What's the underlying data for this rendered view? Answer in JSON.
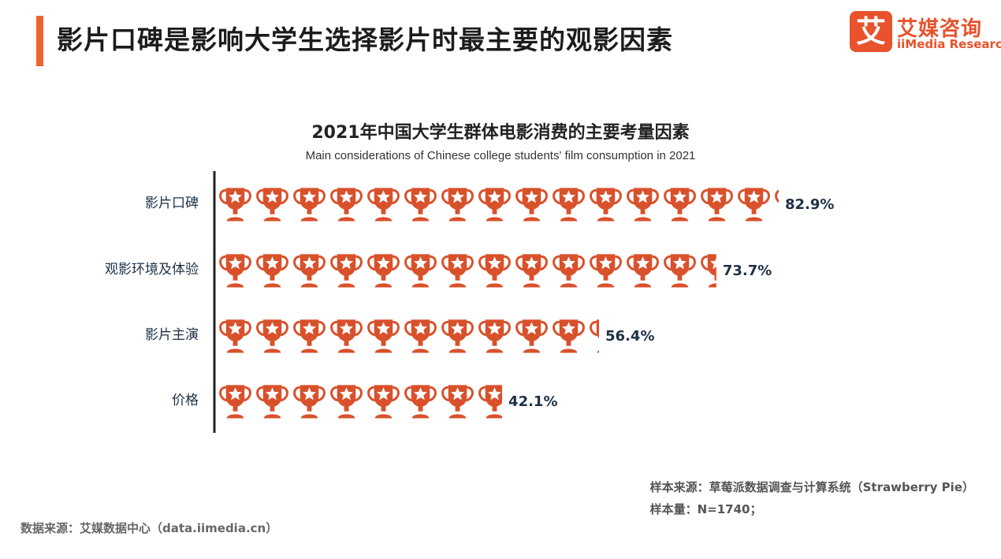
{
  "page": {
    "title": "影片口碑是影响大学生选择影片时最主要的观影因素",
    "accent_color": "#f0622e"
  },
  "logo": {
    "mark": "艾",
    "name_cn": "艾媒咨询",
    "name_en": "iiMedia Research",
    "color": "#e8522c"
  },
  "chart_data": {
    "type": "bar",
    "title": "2021年中国大学生群体电影消费的主要考量因素",
    "subtitle": "Main considerations of Chinese college students' film consumption in 2021",
    "categories": [
      "影片口碑",
      "观影环境及体验",
      "影片主演",
      "价格"
    ],
    "values": [
      82.9,
      73.7,
      56.4,
      42.1
    ],
    "value_labels": [
      "82.9%",
      "73.7%",
      "56.4%",
      "42.1%"
    ],
    "unit": "%",
    "orientation": "horizontal",
    "mark": "trophy-icon",
    "bar_color": "#d9512b",
    "axis_color": "#222222",
    "label_color": "#1d3147"
  },
  "footer": {
    "sample_source": "样本来源：草莓派数据调查与计算系统（Strawberry  Pie）",
    "sample_size": "样本量：N=1740；",
    "data_source": "数据来源：艾媒数据中心（data.iimedia.cn）"
  }
}
